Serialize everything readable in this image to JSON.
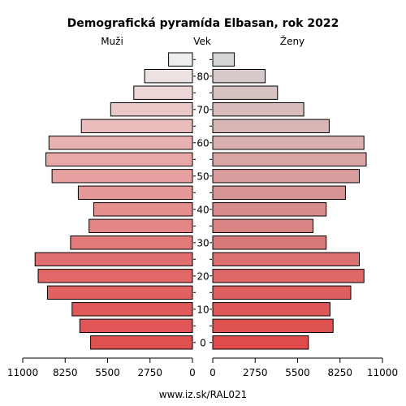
{
  "chart_data": {
    "type": "bar",
    "title": "Demografická pyramída Elbasan, rok 2022",
    "left_header": "Muži",
    "center_header": "Vek",
    "right_header": "Ženy",
    "source_text": "www.iz.sk/RAL021",
    "age_groups": [
      "0-4",
      "5-9",
      "10-14",
      "15-19",
      "20-24",
      "25-29",
      "30-34",
      "35-39",
      "40-44",
      "45-49",
      "50-54",
      "55-59",
      "60-64",
      "65-69",
      "70-74",
      "75-79",
      "80-84",
      "85+"
    ],
    "age_tick_labels": [
      "0",
      "10",
      "20",
      "30",
      "40",
      "50",
      "60",
      "70",
      "80"
    ],
    "series": [
      {
        "name": "Muži",
        "values": [
          6600,
          7300,
          7800,
          9400,
          10000,
          10200,
          7900,
          6700,
          6400,
          7400,
          9100,
          9500,
          9300,
          7200,
          5300,
          3800,
          3100,
          1550
        ]
      },
      {
        "name": "Ženy",
        "values": [
          6200,
          7800,
          7600,
          8950,
          9800,
          9500,
          7350,
          6500,
          7350,
          8600,
          9500,
          9950,
          9800,
          7550,
          5900,
          4200,
          3400,
          1400
        ]
      }
    ],
    "x_tick_labels_left": [
      "11000",
      "8250",
      "5500",
      "2750",
      "0"
    ],
    "x_tick_labels_right": [
      "0",
      "2750",
      "5500",
      "8250",
      "11000"
    ],
    "xlim": [
      0,
      11000
    ],
    "colors": {
      "male": [
        "#e05252",
        "#e05555",
        "#e15a5a",
        "#e16060",
        "#e26767",
        "#e26f6f",
        "#e37a7a",
        "#e48585",
        "#e58e8e",
        "#e69797",
        "#e7a0a0",
        "#e8a8a8",
        "#e9b2b2",
        "#eabcbc",
        "#ebc8c8",
        "#ecd6d6",
        "#ede2e2",
        "#eeeeee"
      ],
      "female": [
        "#e04c4c",
        "#df5252",
        "#de5858",
        "#dd6060",
        "#dc6868",
        "#da7070",
        "#d87a7a",
        "#d88484",
        "#d88c8c",
        "#d89595",
        "#d99d9d",
        "#d9a6a6",
        "#d9afaf",
        "#d9b6b6",
        "#d8bcbc",
        "#d7c2c2",
        "#d6c8c8",
        "#d5d5d5"
      ]
    }
  }
}
